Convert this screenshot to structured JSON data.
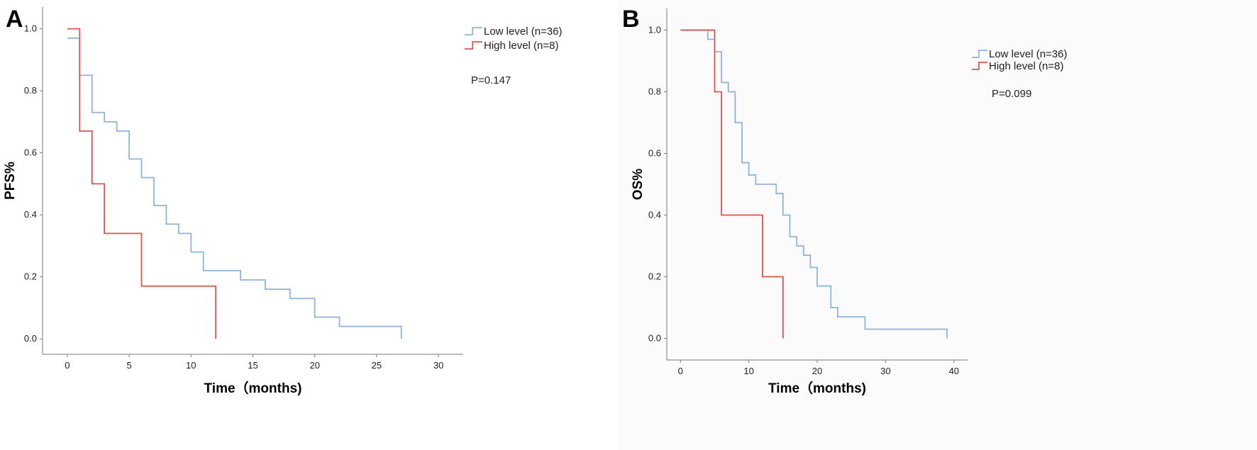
{
  "panels": [
    {
      "letter": "A",
      "p_value": "P=0.147"
    },
    {
      "letter": "B",
      "p_value": "P=0.099"
    }
  ],
  "colors": {
    "low": "#8fb4de",
    "high": "#d9534f",
    "axis": "#777777",
    "panel_b_bg": "#fbfbfb"
  },
  "chart_data": [
    {
      "type": "line",
      "step": "post",
      "xlabel": "Time（months)",
      "ylabel": "PFS%",
      "xlim": [
        -2,
        32
      ],
      "ylim": [
        -0.05,
        1.07
      ],
      "xticks": [
        0,
        5,
        10,
        15,
        20,
        25,
        30
      ],
      "yticks": [
        0.0,
        0.2,
        0.4,
        0.6,
        0.8,
        1.0
      ],
      "legend_position": "top-right",
      "annotation": "P=0.147",
      "series": [
        {
          "name": "Low level (n=36)",
          "color": "#8fb4de",
          "x": [
            0,
            1,
            2,
            3,
            4,
            5,
            6,
            7,
            8,
            9,
            10,
            11,
            14,
            16,
            18,
            20,
            22,
            27,
            27
          ],
          "y": [
            0.97,
            0.85,
            0.73,
            0.7,
            0.67,
            0.58,
            0.52,
            0.43,
            0.37,
            0.34,
            0.28,
            0.22,
            0.19,
            0.16,
            0.13,
            0.07,
            0.04,
            0.04,
            0.0
          ]
        },
        {
          "name": "High level (n=8)",
          "color": "#d9534f",
          "x": [
            0,
            1,
            2,
            3,
            6,
            12,
            12
          ],
          "y": [
            1.0,
            0.67,
            0.5,
            0.34,
            0.17,
            0.17,
            0.0
          ]
        }
      ]
    },
    {
      "type": "line",
      "step": "post",
      "xlabel": "Time（months)",
      "ylabel": "OS%",
      "xlim": [
        -2,
        42
      ],
      "ylim": [
        -0.07,
        1.07
      ],
      "xticks": [
        0,
        10,
        20,
        30,
        40
      ],
      "yticks": [
        0.0,
        0.2,
        0.4,
        0.6,
        0.8,
        1.0
      ],
      "legend_position": "top-right",
      "annotation": "P=0.099",
      "series": [
        {
          "name": "Low level (n=36)",
          "color": "#8fb4de",
          "x": [
            0,
            4,
            5,
            6,
            7,
            8,
            9,
            10,
            11,
            14,
            15,
            16,
            17,
            18,
            19,
            20,
            22,
            23,
            27,
            39,
            39
          ],
          "y": [
            1.0,
            0.97,
            0.93,
            0.83,
            0.8,
            0.7,
            0.57,
            0.53,
            0.5,
            0.47,
            0.4,
            0.33,
            0.3,
            0.27,
            0.23,
            0.17,
            0.1,
            0.07,
            0.03,
            0.03,
            0.0
          ]
        },
        {
          "name": "High level (n=8)",
          "color": "#d9534f",
          "x": [
            0,
            5,
            6,
            12,
            15,
            15
          ],
          "y": [
            1.0,
            0.8,
            0.4,
            0.2,
            0.2,
            0.0
          ]
        }
      ]
    }
  ]
}
